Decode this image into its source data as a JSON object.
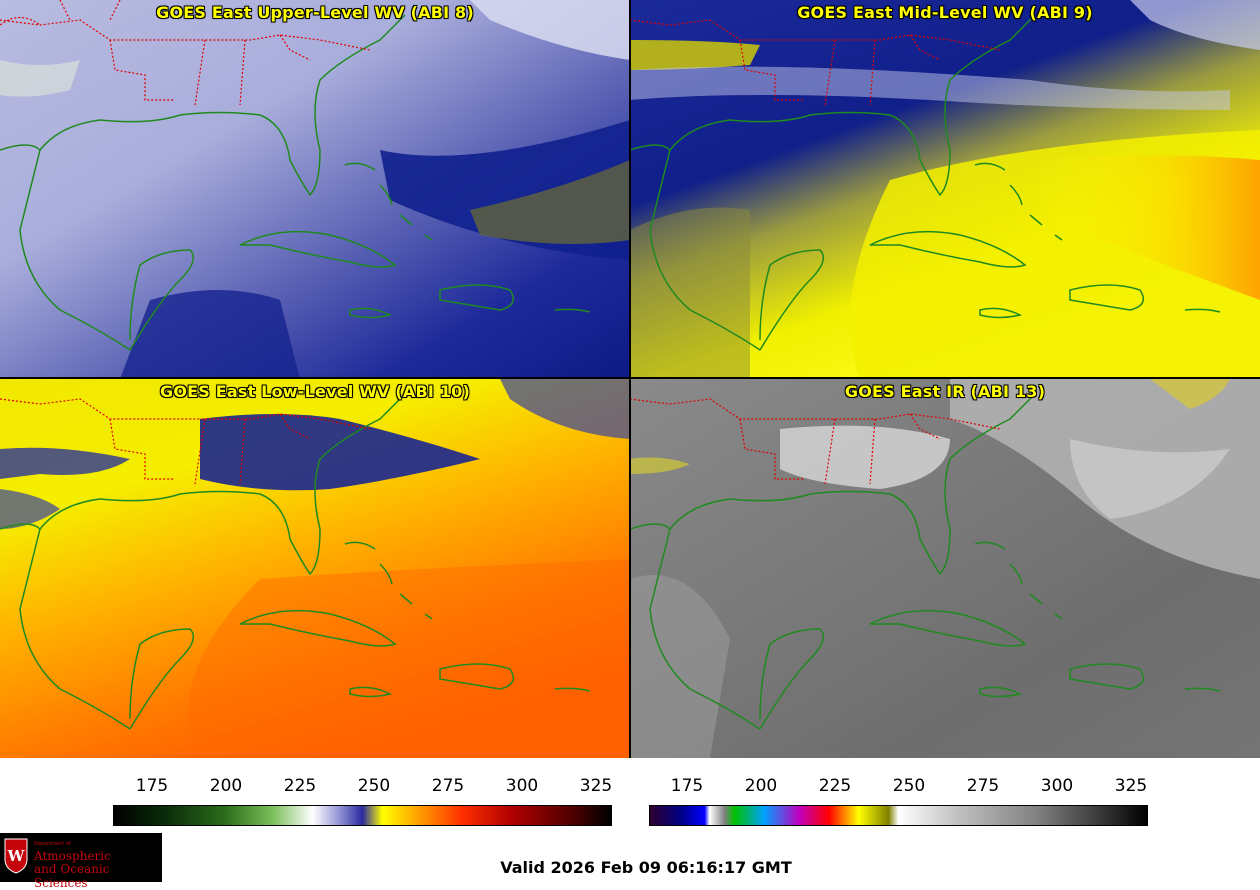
{
  "panels": [
    {
      "id": "p1",
      "title": "GOES East Upper-Level WV (ABI 8)",
      "scheme": "wv_upper"
    },
    {
      "id": "p2",
      "title": "GOES East Mid-Level WV (ABI 9)",
      "scheme": "wv_mid"
    },
    {
      "id": "p3",
      "title": "GOES East Low-Level WV (ABI 10)",
      "scheme": "wv_low"
    },
    {
      "id": "p4",
      "title": "GOES East IR (ABI 13)",
      "scheme": "ir"
    }
  ],
  "colorbars": {
    "wv": {
      "ticks": [
        "175",
        "200",
        "225",
        "250",
        "275",
        "300",
        "325"
      ]
    },
    "ir": {
      "ticks": [
        "175",
        "200",
        "225",
        "250",
        "275",
        "300",
        "325"
      ]
    }
  },
  "valid_time": "Valid 2026 Feb 09 06:16:17 GMT",
  "logo": {
    "dept": "Department of",
    "line1": "Atmospheric",
    "line2": "and Oceanic Sciences"
  },
  "colors": {
    "coast": "#1f8a1f",
    "state_border": "#e00000",
    "title": "#ffff00"
  }
}
